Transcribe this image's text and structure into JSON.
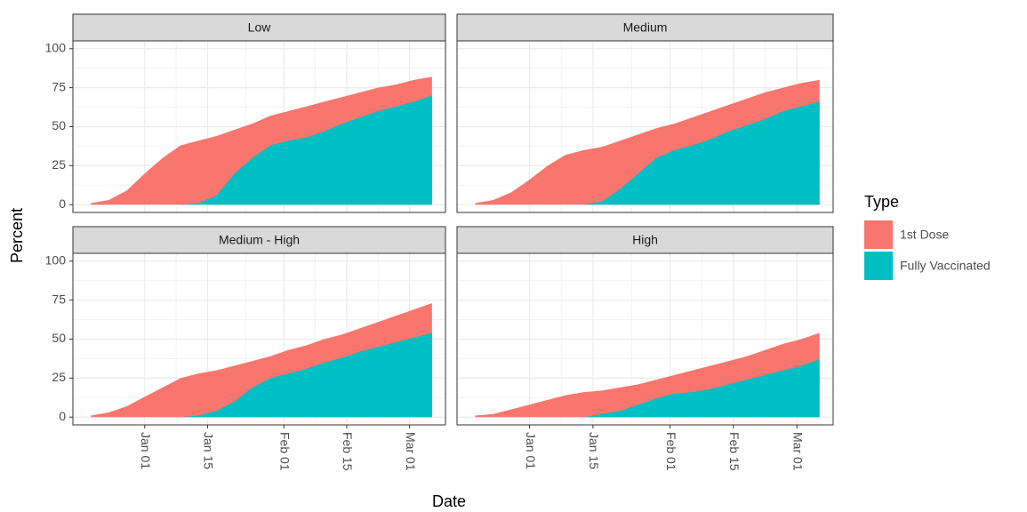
{
  "chart_data": {
    "type": "area",
    "x_label": "Date",
    "y_label": "Percent",
    "legend_title": "Type",
    "legend_position": "right",
    "grid": true,
    "ylim": [
      -5,
      105
    ],
    "yticks": [
      0,
      25,
      50,
      75,
      100
    ],
    "xlim": [
      "Dec 16",
      "Mar 09"
    ],
    "xticks": [
      "Jan 01",
      "Jan 15",
      "Feb 01",
      "Feb 15",
      "Mar 01"
    ],
    "x": [
      "Dec 20",
      "Dec 24",
      "Dec 28",
      "Jan 01",
      "Jan 05",
      "Jan 09",
      "Jan 13",
      "Jan 17",
      "Jan 21",
      "Jan 25",
      "Jan 29",
      "Feb 02",
      "Feb 06",
      "Feb 10",
      "Feb 14",
      "Feb 18",
      "Feb 22",
      "Feb 26",
      "Mar 02",
      "Mar 06"
    ],
    "series": [
      {
        "name": "1st Dose",
        "color": "#F8766D"
      },
      {
        "name": "Fully Vaccinated",
        "color": "#00BFC4"
      }
    ],
    "facets": [
      {
        "title": "Low",
        "values": [
          [
            1,
            3,
            9,
            20,
            30,
            38,
            41,
            44,
            48,
            52,
            57,
            60,
            63,
            66,
            69,
            72,
            75,
            77,
            80,
            82
          ],
          [
            0,
            0,
            0,
            0,
            0,
            0,
            1,
            6,
            20,
            30,
            38,
            41,
            43,
            47,
            52,
            56,
            60,
            63,
            66,
            70
          ]
        ]
      },
      {
        "title": "Medium",
        "values": [
          [
            1,
            3,
            8,
            16,
            25,
            32,
            35,
            37,
            41,
            45,
            49,
            52,
            56,
            60,
            64,
            68,
            72,
            75,
            78,
            80
          ],
          [
            0,
            0,
            0,
            0,
            0,
            0,
            0,
            2,
            10,
            20,
            30,
            35,
            38,
            42,
            47,
            51,
            55,
            60,
            63,
            66
          ]
        ]
      },
      {
        "title": "Medium - High",
        "values": [
          [
            1,
            3,
            7,
            13,
            19,
            25,
            28,
            30,
            33,
            36,
            39,
            43,
            46,
            50,
            53,
            57,
            61,
            65,
            69,
            73
          ],
          [
            0,
            0,
            0,
            0,
            0,
            0,
            1,
            4,
            10,
            19,
            25,
            28,
            31,
            35,
            38,
            42,
            45,
            48,
            51,
            54
          ]
        ]
      },
      {
        "title": "High",
        "values": [
          [
            1,
            2,
            5,
            8,
            11,
            14,
            16,
            17,
            19,
            21,
            24,
            27,
            30,
            33,
            36,
            39,
            43,
            47,
            50,
            54
          ],
          [
            0,
            0,
            0,
            0,
            0,
            0,
            0,
            2,
            4,
            8,
            12,
            15,
            16,
            18,
            21,
            24,
            27,
            30,
            33,
            37
          ]
        ]
      }
    ]
  }
}
